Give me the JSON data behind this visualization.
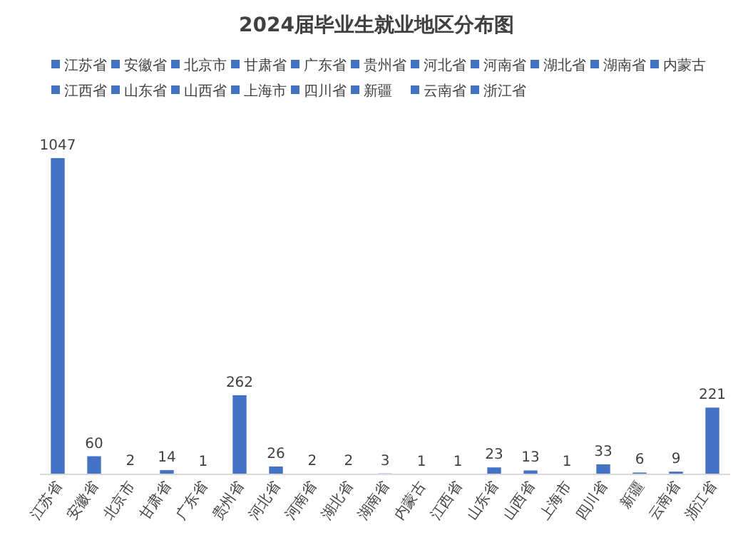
{
  "chart_data": {
    "type": "bar",
    "title": "2024届毕业生就业地区分布图",
    "categories": [
      "江苏省",
      "安徽省",
      "北京市",
      "甘肃省",
      "广东省",
      "贵州省",
      "河北省",
      "河南省",
      "湖北省",
      "湖南省",
      "内蒙古",
      "江西省",
      "山东省",
      "山西省",
      "上海市",
      "四川省",
      "新疆",
      "云南省",
      "浙江省"
    ],
    "series": [
      {
        "name": "江苏省",
        "color": "#4472c4",
        "values": [
          1047,
          null,
          null,
          null,
          null,
          null,
          null,
          null,
          null,
          null,
          null,
          null,
          null,
          null,
          null,
          null,
          null,
          null,
          null
        ]
      },
      {
        "name": "安徽省",
        "color": "#4472c4",
        "values": [
          null,
          60,
          null,
          null,
          null,
          null,
          null,
          null,
          null,
          null,
          null,
          null,
          null,
          null,
          null,
          null,
          null,
          null,
          null
        ]
      },
      {
        "name": "北京市",
        "color": "#4472c4",
        "values": [
          null,
          null,
          2,
          null,
          null,
          null,
          null,
          null,
          null,
          null,
          null,
          null,
          null,
          null,
          null,
          null,
          null,
          null,
          null
        ]
      },
      {
        "name": "甘肃省",
        "color": "#4472c4",
        "values": [
          null,
          null,
          null,
          14,
          null,
          null,
          null,
          null,
          null,
          null,
          null,
          null,
          null,
          null,
          null,
          null,
          null,
          null,
          null
        ]
      },
      {
        "name": "广东省",
        "color": "#4472c4",
        "values": [
          null,
          null,
          null,
          null,
          1,
          null,
          null,
          null,
          null,
          null,
          null,
          null,
          null,
          null,
          null,
          null,
          null,
          null,
          null
        ]
      },
      {
        "name": "贵州省",
        "color": "#4472c4",
        "values": [
          null,
          null,
          null,
          null,
          null,
          262,
          null,
          null,
          null,
          null,
          null,
          null,
          null,
          null,
          null,
          null,
          null,
          null,
          null
        ]
      },
      {
        "name": "河北省",
        "color": "#4472c4",
        "values": [
          null,
          null,
          null,
          null,
          null,
          null,
          26,
          null,
          null,
          null,
          null,
          null,
          null,
          null,
          null,
          null,
          null,
          null,
          null
        ]
      },
      {
        "name": "河南省",
        "color": "#4472c4",
        "values": [
          null,
          null,
          null,
          null,
          null,
          null,
          null,
          2,
          null,
          null,
          null,
          null,
          null,
          null,
          null,
          null,
          null,
          null,
          null
        ]
      },
      {
        "name": "湖北省",
        "color": "#4472c4",
        "values": [
          null,
          null,
          null,
          null,
          null,
          null,
          null,
          null,
          2,
          null,
          null,
          null,
          null,
          null,
          null,
          null,
          null,
          null,
          null
        ]
      },
      {
        "name": "湖南省",
        "color": "#4472c4",
        "values": [
          null,
          null,
          null,
          null,
          null,
          null,
          null,
          null,
          null,
          3,
          null,
          null,
          null,
          null,
          null,
          null,
          null,
          null,
          null
        ]
      },
      {
        "name": "内蒙古",
        "color": "#4472c4",
        "values": [
          null,
          null,
          null,
          null,
          null,
          null,
          null,
          null,
          null,
          null,
          1,
          null,
          null,
          null,
          null,
          null,
          null,
          null,
          null
        ]
      },
      {
        "name": "江西省",
        "color": "#4472c4",
        "values": [
          null,
          null,
          null,
          null,
          null,
          null,
          null,
          null,
          null,
          null,
          null,
          1,
          null,
          null,
          null,
          null,
          null,
          null,
          null
        ]
      },
      {
        "name": "山东省",
        "color": "#4472c4",
        "values": [
          null,
          null,
          null,
          null,
          null,
          null,
          null,
          null,
          null,
          null,
          null,
          null,
          23,
          null,
          null,
          null,
          null,
          null,
          null
        ]
      },
      {
        "name": "山西省",
        "color": "#4472c4",
        "values": [
          null,
          null,
          null,
          null,
          null,
          null,
          null,
          null,
          null,
          null,
          null,
          null,
          null,
          13,
          null,
          null,
          null,
          null,
          null
        ]
      },
      {
        "name": "上海市",
        "color": "#4472c4",
        "values": [
          null,
          null,
          null,
          null,
          null,
          null,
          null,
          null,
          null,
          null,
          null,
          null,
          null,
          null,
          1,
          null,
          null,
          null,
          null
        ]
      },
      {
        "name": "四川省",
        "color": "#4472c4",
        "values": [
          null,
          null,
          null,
          null,
          null,
          null,
          null,
          null,
          null,
          null,
          null,
          null,
          null,
          null,
          null,
          33,
          null,
          null,
          null
        ]
      },
      {
        "name": "新疆",
        "color": "#4472c4",
        "values": [
          null,
          null,
          null,
          null,
          null,
          null,
          null,
          null,
          null,
          null,
          null,
          null,
          null,
          null,
          null,
          null,
          6,
          null,
          null
        ]
      },
      {
        "name": "云南省",
        "color": "#4472c4",
        "values": [
          null,
          null,
          null,
          null,
          null,
          null,
          null,
          null,
          null,
          null,
          null,
          null,
          null,
          null,
          null,
          null,
          null,
          9,
          null
        ]
      },
      {
        "name": "浙江省",
        "color": "#4472c4",
        "values": [
          null,
          null,
          null,
          null,
          null,
          null,
          null,
          null,
          null,
          null,
          null,
          null,
          null,
          null,
          null,
          null,
          null,
          null,
          221
        ]
      }
    ],
    "data_labels": true,
    "legend": "top"
  }
}
